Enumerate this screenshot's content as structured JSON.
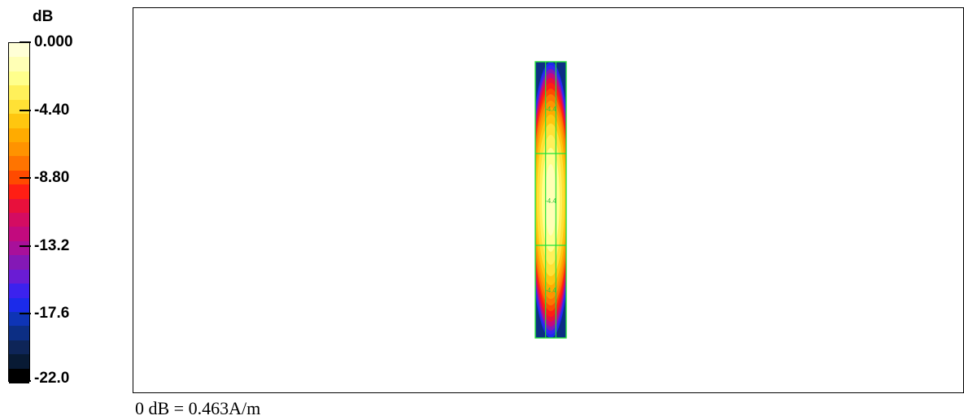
{
  "legend": {
    "unit": "dB",
    "ticks": [
      "0.000",
      "-4.40",
      "-8.80",
      "-13.2",
      "-17.6",
      "-22.0"
    ],
    "tick_values": [
      0.0,
      -4.4,
      -8.8,
      -13.2,
      -17.6,
      -22.0
    ],
    "colors_top_to_bottom": [
      "#FFFFD6",
      "#FFFFB5",
      "#FFFF8C",
      "#FFF05A",
      "#FFE135",
      "#FFC60F",
      "#FFAB00",
      "#FF9300",
      "#FF7400",
      "#FF4A00",
      "#FF1E14",
      "#E8103C",
      "#D40C62",
      "#C20A7E",
      "#A8109A",
      "#8418B6",
      "#6A1CD4",
      "#3C22EE",
      "#1B2BEA",
      "#0E34B6",
      "#0C2E84",
      "#0E2558",
      "#081A34",
      "#000000"
    ]
  },
  "caption": "0 dB = 0.463A/m",
  "chart_data": {
    "type": "heatmap",
    "title": "",
    "xlabel": "",
    "ylabel": "",
    "colorbar_unit": "dB",
    "colorbar_range": [
      -22.0,
      0.0
    ],
    "colorbar_ticks": [
      0.0,
      -4.4,
      -8.8,
      -13.2,
      -17.6,
      -22.0
    ],
    "reference": "0 dB = 0.463A/m",
    "peak_db": 0.0,
    "edge_db": -22.0,
    "grid_columns": 3,
    "grid_rows": 3,
    "contour_labels": [
      "-4.4",
      "-4.4",
      "-4.4"
    ]
  }
}
